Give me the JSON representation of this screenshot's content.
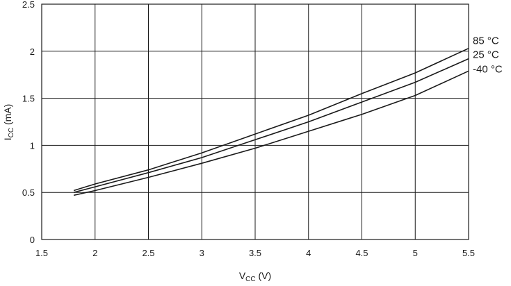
{
  "chart_data": {
    "type": "line",
    "x_axis": {
      "main": "V",
      "sub": "CC",
      "unit": " (V)",
      "range": [
        1.5,
        5.5
      ],
      "ticks": [
        "1.5",
        "2",
        "2.5",
        "3",
        "3.5",
        "4",
        "4.5",
        "5",
        "5.5"
      ]
    },
    "y_axis": {
      "main": "I",
      "sub": "CC",
      "unit": " (mA)",
      "range": [
        0,
        2.5
      ],
      "ticks": [
        "0",
        "0.5",
        "1",
        "1.5",
        "2",
        "2.5"
      ]
    },
    "grid": true,
    "series": [
      {
        "name": "85 °C",
        "x": [
          1.8,
          2.0,
          2.5,
          3.0,
          3.5,
          4.0,
          4.5,
          5.0,
          5.5
        ],
        "y": [
          0.52,
          0.59,
          0.74,
          0.92,
          1.12,
          1.32,
          1.55,
          1.77,
          2.03
        ]
      },
      {
        "name": "25 °C",
        "x": [
          1.8,
          2.0,
          2.5,
          3.0,
          3.5,
          4.0,
          4.5,
          5.0,
          5.5
        ],
        "y": [
          0.5,
          0.56,
          0.71,
          0.87,
          1.06,
          1.25,
          1.46,
          1.67,
          1.92
        ]
      },
      {
        "name": "-40 °C",
        "x": [
          1.8,
          2.0,
          2.5,
          3.0,
          3.5,
          4.0,
          4.5,
          5.0,
          5.5
        ],
        "y": [
          0.47,
          0.52,
          0.66,
          0.81,
          0.97,
          1.15,
          1.33,
          1.53,
          1.79
        ]
      }
    ]
  }
}
